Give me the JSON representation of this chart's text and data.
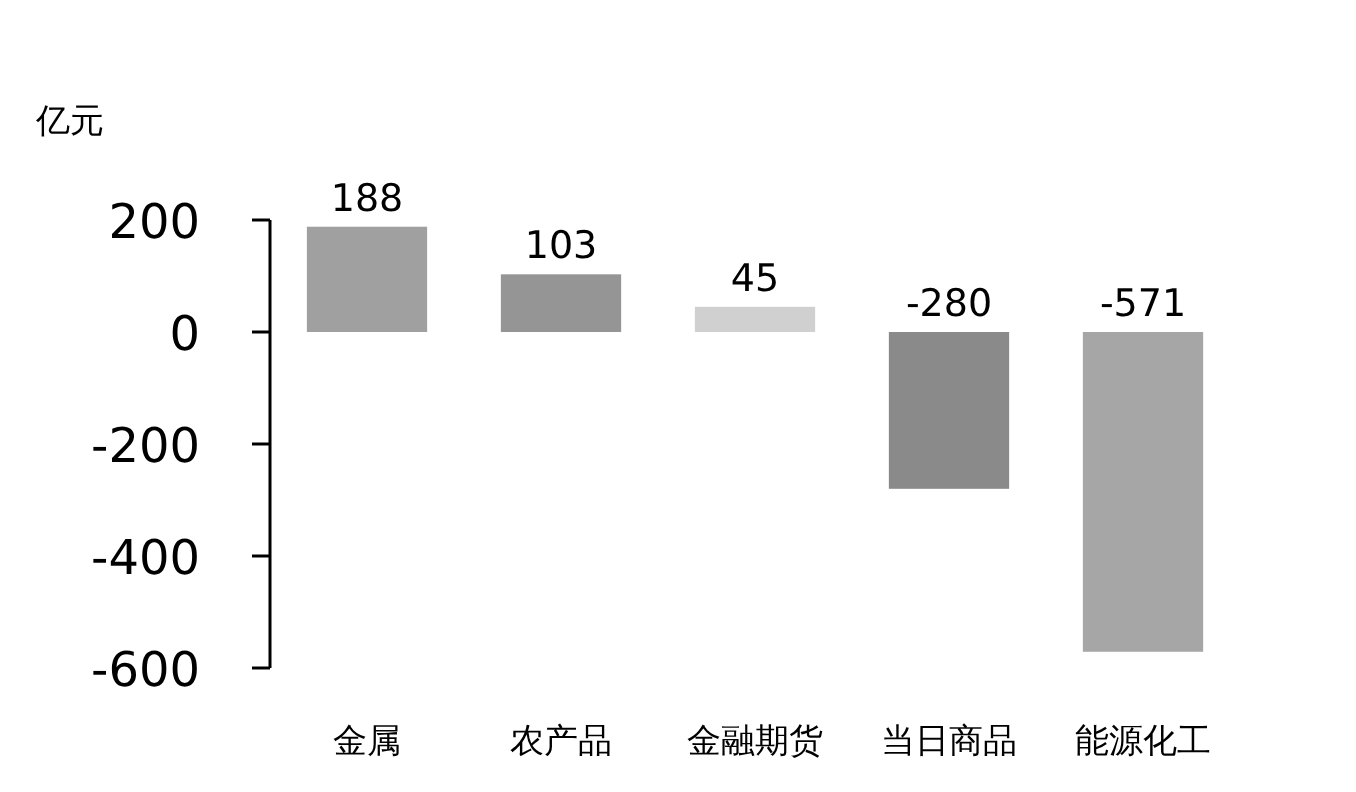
{
  "chart_data": {
    "type": "bar",
    "ylabel": "亿元",
    "categories": [
      "金属",
      "农产品",
      "金融期货",
      "当日商品",
      "能源化工"
    ],
    "values": [
      188,
      103,
      45,
      -280,
      -571
    ],
    "colors": [
      "#a0a0a0",
      "#959595",
      "#d0d0d0",
      "#8a8a8a",
      "#a6a6a6"
    ],
    "ylim": [
      -600,
      200
    ],
    "yticks": [
      200,
      0,
      -200,
      -400,
      -600
    ],
    "data_labels": true
  }
}
